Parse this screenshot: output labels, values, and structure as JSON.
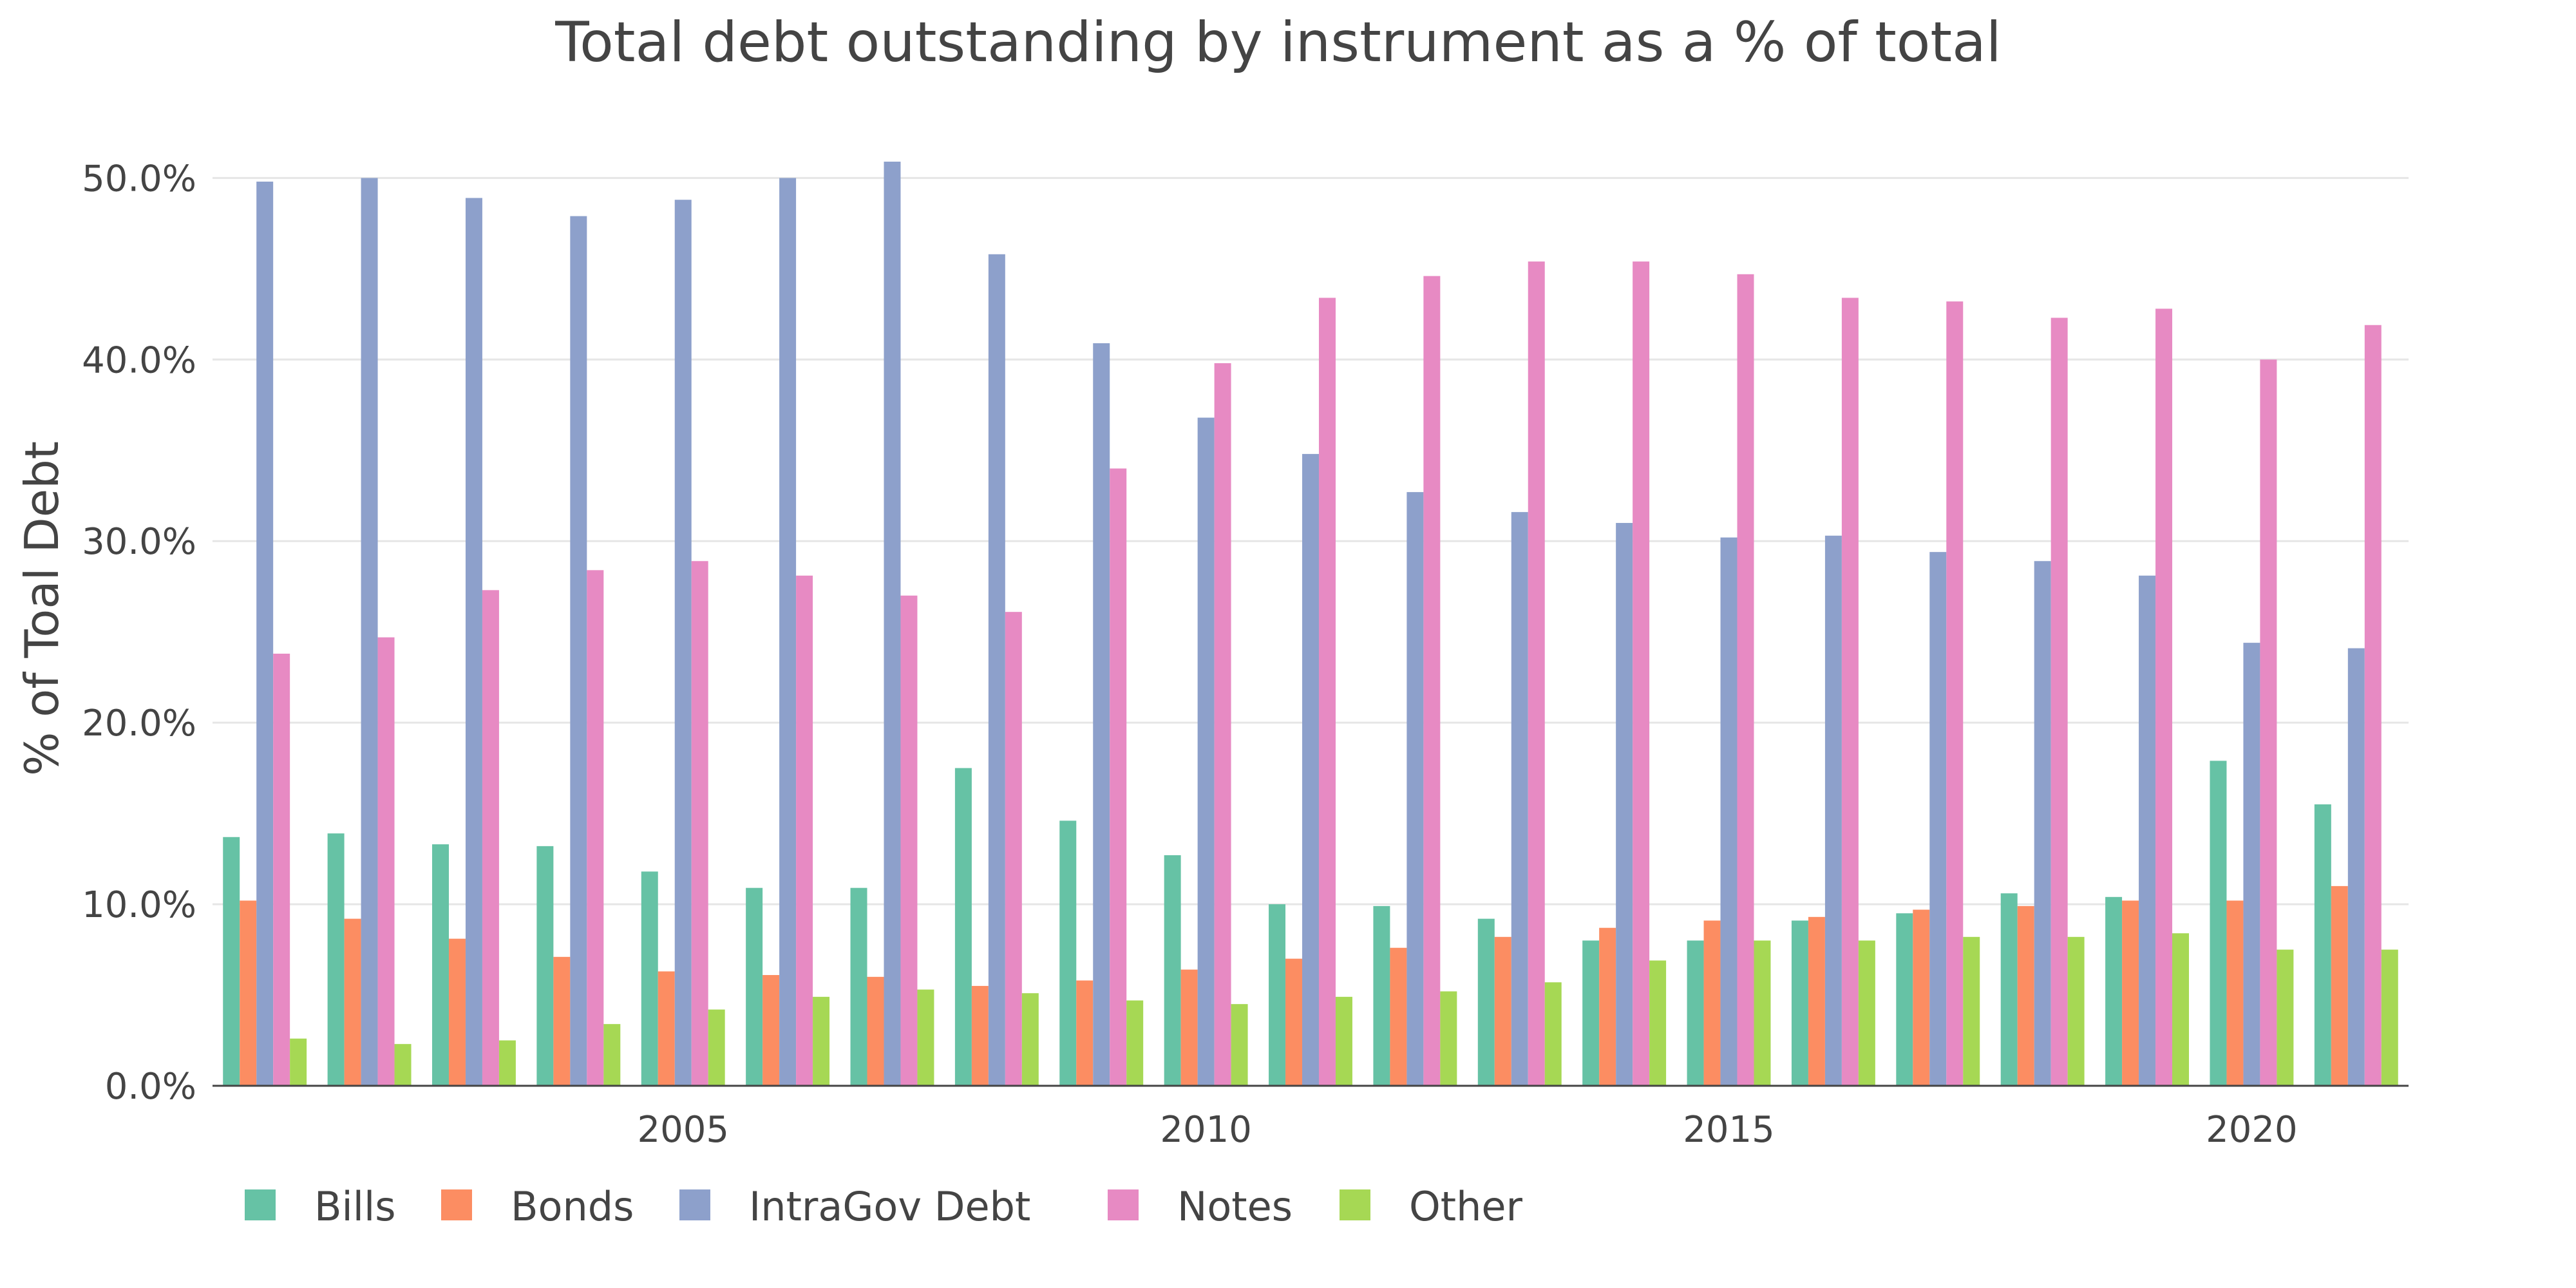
{
  "chart_data": {
    "type": "bar",
    "title": "Total debt outstanding by instrument as a % of total",
    "xlabel": "",
    "ylabel": "% of Toal Debt",
    "categories": [
      2001,
      2002,
      2003,
      2004,
      2005,
      2006,
      2007,
      2008,
      2009,
      2010,
      2011,
      2012,
      2013,
      2014,
      2015,
      2016,
      2017,
      2018,
      2019,
      2020,
      2021
    ],
    "x_ticks": [
      2005,
      2010,
      2015,
      2020
    ],
    "x_tick_labels": [
      "2005",
      "2010",
      "2015",
      "2020"
    ],
    "y_ticks": [
      0,
      10,
      20,
      30,
      40,
      50
    ],
    "y_tick_labels": [
      "0.0%",
      "10.0%",
      "20.0%",
      "30.0%",
      "40.0%",
      "50.0%"
    ],
    "ylim": [
      0,
      52
    ],
    "grid": true,
    "legend_position": "bottom-left",
    "series": [
      {
        "name": "Bills",
        "color": "#66c2a5",
        "values": [
          13.7,
          13.9,
          13.3,
          13.2,
          11.8,
          10.9,
          10.9,
          17.5,
          14.6,
          12.7,
          10.0,
          9.9,
          9.2,
          8.0,
          8.0,
          9.1,
          9.5,
          10.6,
          10.4,
          17.9,
          15.5
        ]
      },
      {
        "name": "Bonds",
        "color": "#fc8d62",
        "values": [
          10.2,
          9.2,
          8.1,
          7.1,
          6.3,
          6.1,
          6.0,
          5.5,
          5.8,
          6.4,
          7.0,
          7.6,
          8.2,
          8.7,
          9.1,
          9.3,
          9.7,
          9.9,
          10.2,
          10.2,
          11.0
        ]
      },
      {
        "name": "IntraGov Debt",
        "color": "#8da0cb",
        "values": [
          49.8,
          50.0,
          48.9,
          47.9,
          48.8,
          50.0,
          50.9,
          45.8,
          40.9,
          36.8,
          34.8,
          32.7,
          31.6,
          31.0,
          30.2,
          30.3,
          29.4,
          28.9,
          28.1,
          24.4,
          24.1
        ]
      },
      {
        "name": "Notes",
        "color": "#e78ac3",
        "values": [
          23.8,
          24.7,
          27.3,
          28.4,
          28.9,
          28.1,
          27.0,
          26.1,
          34.0,
          39.8,
          43.4,
          44.6,
          45.4,
          45.4,
          44.7,
          43.4,
          43.2,
          42.3,
          42.8,
          40.0,
          41.9
        ]
      },
      {
        "name": "Other",
        "color": "#a6d854",
        "values": [
          2.6,
          2.3,
          2.5,
          3.4,
          4.2,
          4.9,
          5.3,
          5.1,
          4.7,
          4.5,
          4.9,
          5.2,
          5.7,
          6.9,
          8.0,
          8.0,
          8.2,
          8.2,
          8.4,
          7.5,
          7.5
        ]
      }
    ]
  }
}
